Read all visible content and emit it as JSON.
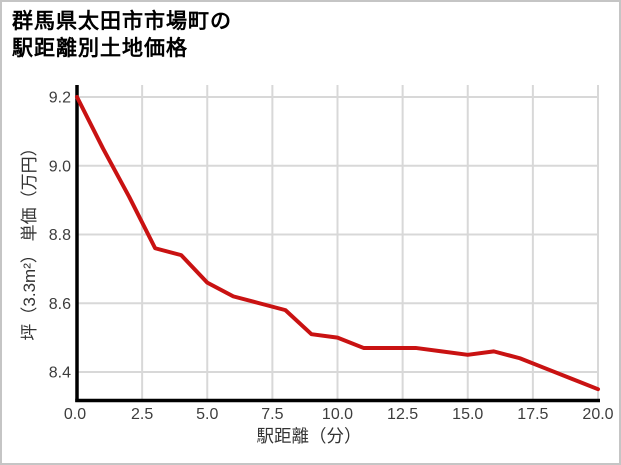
{
  "title": {
    "line1": "群馬県太田市市場町の",
    "line2": "駅距離別土地価格"
  },
  "chart_data": {
    "type": "line",
    "title": "群馬県太田市市場町の駅距離別土地価格",
    "xlabel": "駅距離（分）",
    "ylabel": "坪（3.3m²） 単価（万円）",
    "x": [
      0,
      1,
      2,
      3,
      4,
      5,
      6,
      7,
      8,
      9,
      10,
      11,
      12,
      13,
      14,
      15,
      16,
      17,
      18,
      19,
      20
    ],
    "y": [
      9.2,
      9.05,
      8.91,
      8.76,
      8.74,
      8.66,
      8.62,
      8.6,
      8.58,
      8.51,
      8.5,
      8.47,
      8.47,
      8.47,
      8.46,
      8.45,
      8.46,
      8.44,
      8.41,
      8.38,
      8.35
    ],
    "x_tick_labels": [
      "0.0",
      "2.5",
      "5.0",
      "7.5",
      "10.0",
      "12.5",
      "15.0",
      "17.5",
      "20.0"
    ],
    "y_tick_labels": [
      "9.2",
      "9.0",
      "8.8",
      "8.6",
      "8.4"
    ],
    "xlim": [
      0,
      20
    ],
    "ylim": [
      8.32,
      9.23
    ],
    "grid": true,
    "legend_position": "none",
    "line_color": "#c91212",
    "grid_color": "#d8d8d8",
    "axis_color": "#000000",
    "tick_text_color": "#3d3d3d",
    "axis_label_color": "#333333",
    "background_color": "#ffffff",
    "border_color": "#c5c5c5"
  }
}
